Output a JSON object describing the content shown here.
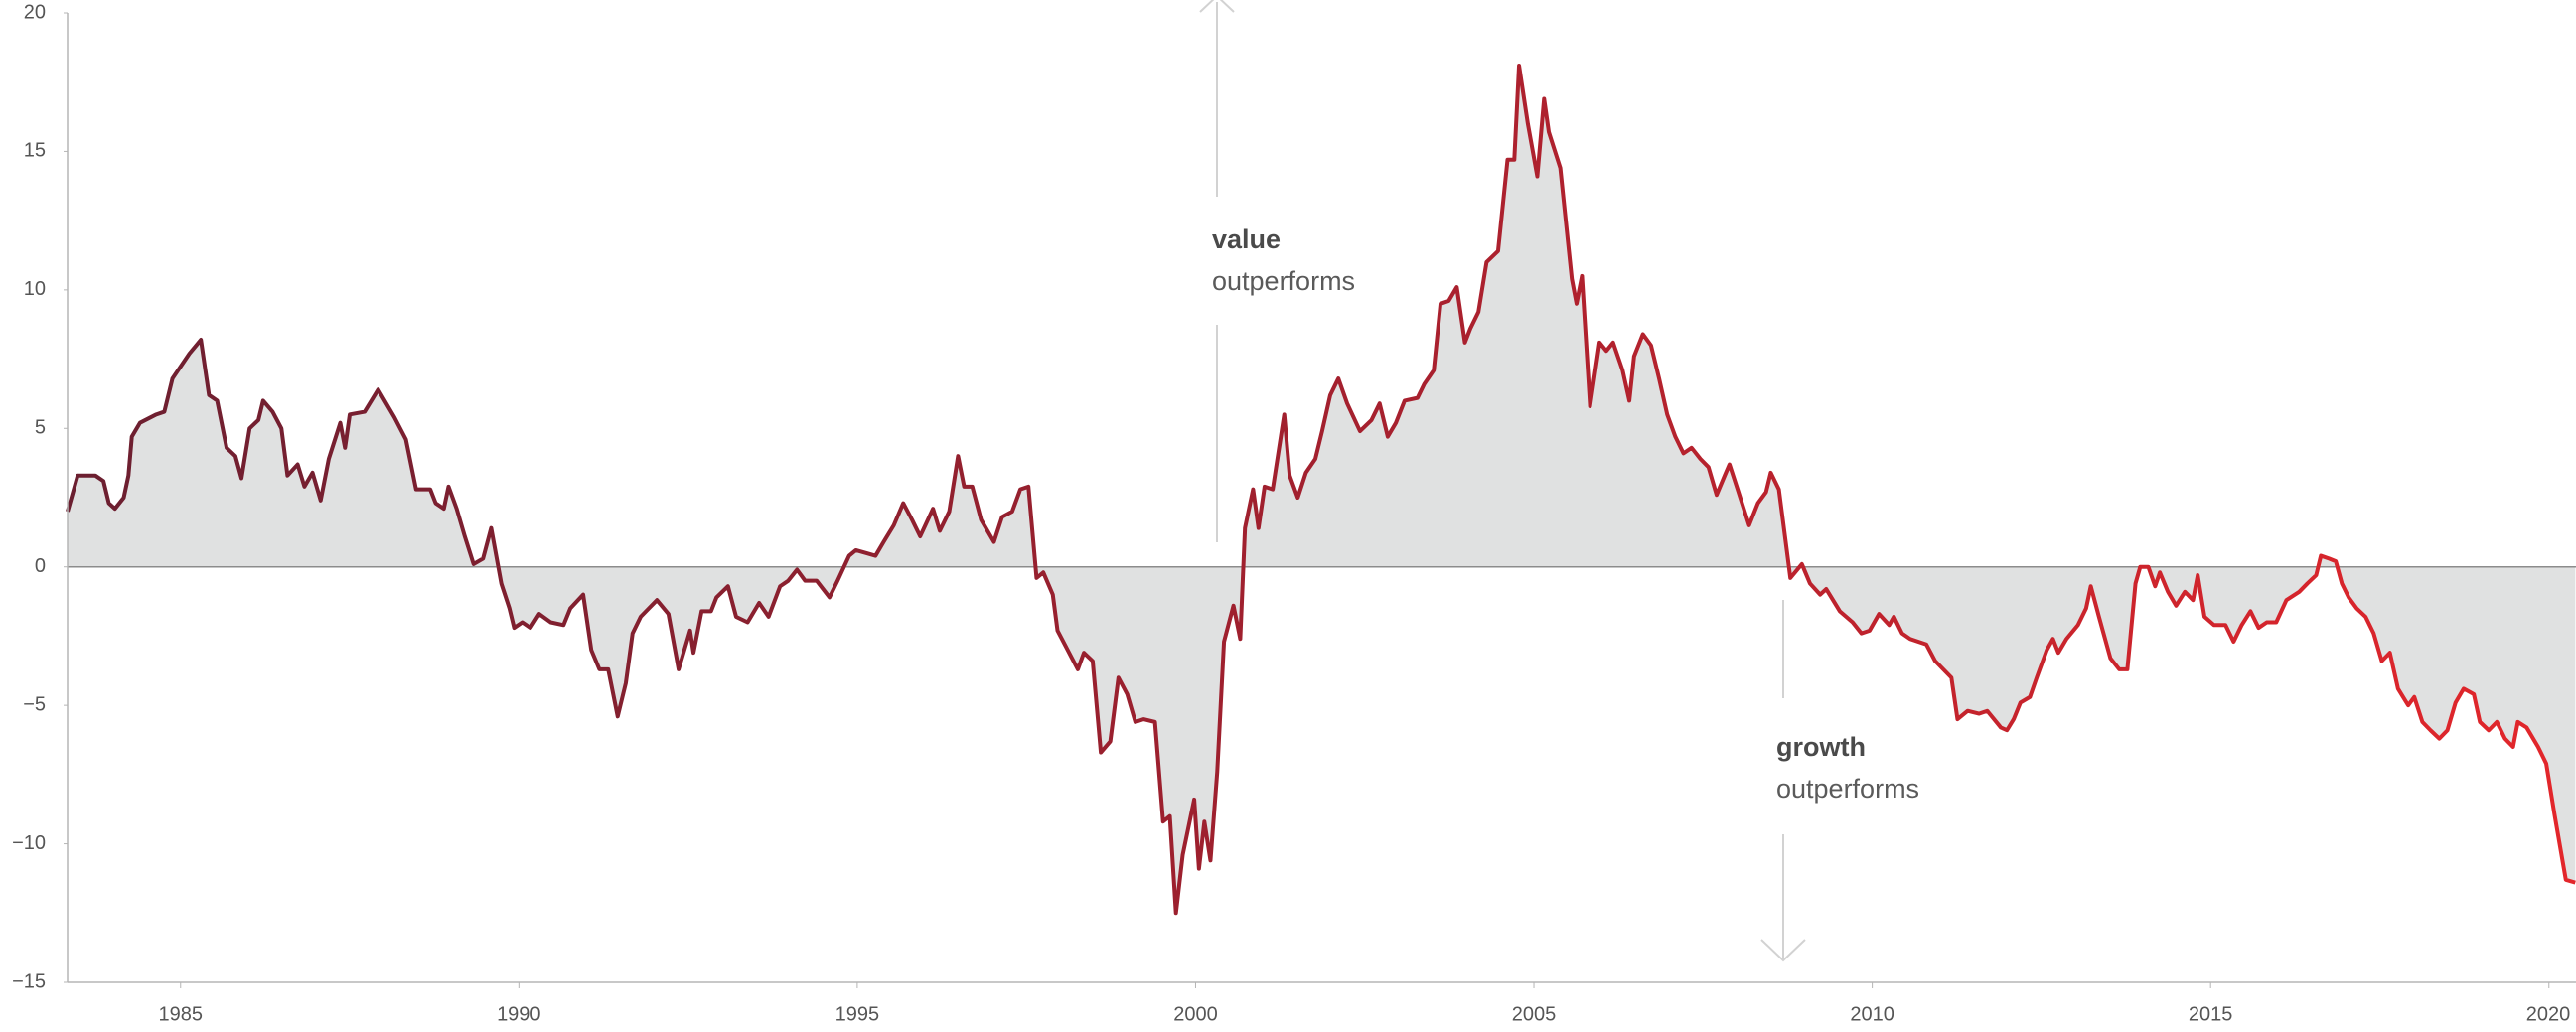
{
  "chart_data": {
    "type": "area-line",
    "annotations": [
      {
        "bold": "value",
        "text": "outperforms"
      },
      {
        "bold": "growth",
        "text": "outperforms"
      }
    ],
    "x": [
      1983.33,
      1983.48,
      1983.74,
      1983.86,
      1983.94,
      1984.03,
      1984.16,
      1984.23,
      1984.28,
      1984.4,
      1984.64,
      1984.76,
      1984.88,
      1985.13,
      1985.3,
      1985.42,
      1985.54,
      1985.68,
      1985.81,
      1985.9,
      1986.02,
      1986.15,
      1986.22,
      1986.36,
      1986.49,
      1986.58,
      1986.73,
      1986.83,
      1986.95,
      1987.07,
      1987.19,
      1987.36,
      1987.43,
      1987.5,
      1987.72,
      1987.92,
      1988.16,
      1988.33,
      1988.48,
      1988.69,
      1988.77,
      1988.89,
      1988.96,
      1989.08,
      1989.2,
      1989.33,
      1989.47,
      1989.59,
      1989.74,
      1989.86,
      1989.93,
      1990.05,
      1990.17,
      1990.3,
      1990.47,
      1990.66,
      1990.76,
      1990.95,
      1991.07,
      1991.19,
      1991.32,
      1991.46,
      1991.58,
      1991.68,
      1991.8,
      1991.92,
      1992.04,
      1992.21,
      1992.36,
      1992.53,
      1992.58,
      1992.7,
      1992.84,
      1992.92,
      1993.09,
      1993.21,
      1993.38,
      1993.55,
      1993.69,
      1993.86,
      1993.98,
      1994.11,
      1994.23,
      1994.4,
      1994.59,
      1994.71,
      1994.88,
      1994.98,
      1995.13,
      1995.27,
      1995.39,
      1995.54,
      1995.68,
      1995.81,
      1995.93,
      1996.12,
      1996.22,
      1996.36,
      1996.49,
      1996.58,
      1996.7,
      1996.83,
      1997.02,
      1997.14,
      1997.29,
      1997.41,
      1997.53,
      1997.65,
      1997.75,
      1997.89,
      1997.96,
      1998.11,
      1998.26,
      1998.35,
      1998.48,
      1998.6,
      1998.74,
      1998.86,
      1998.99,
      1999.11,
      1999.23,
      1999.4,
      1999.52,
      1999.62,
      1999.71,
      1999.81,
      1999.98,
      2000.05,
      2000.13,
      2000.22,
      2000.32,
      2000.42,
      2000.56,
      2000.66,
      2000.73,
      2000.85,
      2000.93,
      2001.02,
      2001.14,
      2001.31,
      2001.39,
      2001.51,
      2001.63,
      2001.77,
      2001.87,
      2001.99,
      2002.11,
      2002.24,
      2002.43,
      2002.6,
      2002.72,
      2002.84,
      2002.96,
      2003.09,
      2003.28,
      2003.38,
      2003.52,
      2003.62,
      2003.74,
      2003.86,
      2003.98,
      2004.06,
      2004.18,
      2004.3,
      2004.47,
      2004.61,
      2004.71,
      2004.78,
      2004.91,
      2005.05,
      2005.15,
      2005.22,
      2005.39,
      2005.56,
      2005.63,
      2005.71,
      2005.83,
      2005.97,
      2006.07,
      2006.17,
      2006.31,
      2006.41,
      2006.48,
      2006.61,
      2006.73,
      2006.85,
      2006.97,
      2007.09,
      2007.21,
      2007.33,
      2007.46,
      2007.58,
      2007.7,
      2007.82,
      2007.89,
      2008.01,
      2008.18,
      2008.31,
      2008.43,
      2008.5,
      2008.62,
      2008.79,
      2008.96,
      2009.08,
      2009.23,
      2009.32,
      2009.52,
      2009.71,
      2009.84,
      2009.96,
      2010.1,
      2010.25,
      2010.32,
      2010.44,
      2010.56,
      2010.68,
      2010.8,
      2010.93,
      2011.17,
      2011.26,
      2011.41,
      2011.58,
      2011.7,
      2011.9,
      2011.99,
      2012.09,
      2012.19,
      2012.33,
      2012.43,
      2012.58,
      2012.67,
      2012.75,
      2012.87,
      2013.04,
      2013.16,
      2013.23,
      2013.35,
      2013.52,
      2013.65,
      2013.77,
      2013.89,
      2013.96,
      2014.08,
      2014.18,
      2014.25,
      2014.37,
      2014.49,
      2014.62,
      2014.74,
      2014.81,
      2014.91,
      2015.05,
      2015.22,
      2015.34,
      2015.46,
      2015.59,
      2015.71,
      2015.83,
      2015.97,
      2016.12,
      2016.31,
      2016.43,
      2016.56,
      2016.63,
      2016.75,
      2016.85,
      2016.94,
      2017.04,
      2017.16,
      2017.29,
      2017.41,
      2017.53,
      2017.65,
      2017.77,
      2017.92,
      2018.01,
      2018.13,
      2018.25,
      2018.38,
      2018.5,
      2018.62,
      2018.74,
      2018.89,
      2018.98,
      2019.11,
      2019.23,
      2019.35,
      2019.47,
      2019.54,
      2019.67,
      2019.84,
      2019.96,
      2020.08,
      2020.25,
      2020.39
    ],
    "values": [
      2.0,
      3.3,
      3.3,
      3.1,
      2.3,
      2.1,
      2.5,
      3.3,
      4.7,
      5.2,
      5.5,
      5.6,
      6.8,
      7.7,
      8.2,
      6.2,
      6.0,
      4.3,
      4.0,
      3.2,
      5.0,
      5.3,
      6.0,
      5.6,
      5.0,
      3.3,
      3.7,
      2.9,
      3.4,
      2.4,
      3.9,
      5.2,
      4.3,
      5.5,
      5.6,
      6.4,
      5.4,
      4.6,
      2.8,
      2.8,
      2.3,
      2.1,
      2.9,
      2.1,
      1.1,
      0.1,
      0.3,
      1.4,
      -0.6,
      -1.5,
      -2.2,
      -2.0,
      -2.2,
      -1.7,
      -2.0,
      -2.1,
      -1.5,
      -1.0,
      -3.0,
      -3.7,
      -3.7,
      -5.4,
      -4.2,
      -2.4,
      -1.8,
      -1.5,
      -1.2,
      -1.7,
      -3.7,
      -2.3,
      -3.1,
      -1.6,
      -1.6,
      -1.1,
      -0.7,
      -1.8,
      -2.0,
      -1.3,
      -1.8,
      -0.7,
      -0.5,
      -0.1,
      -0.5,
      -0.5,
      -1.1,
      -0.5,
      0.4,
      0.6,
      0.5,
      0.4,
      0.9,
      1.5,
      2.3,
      1.7,
      1.1,
      2.1,
      1.3,
      2.0,
      4.0,
      2.9,
      2.9,
      1.7,
      0.9,
      1.8,
      2.0,
      2.8,
      2.9,
      -0.4,
      -0.2,
      -1.0,
      -2.3,
      -3.0,
      -3.7,
      -3.1,
      -3.4,
      -6.7,
      -6.3,
      -4.0,
      -4.6,
      -5.6,
      -5.5,
      -5.6,
      -9.2,
      -9.0,
      -12.5,
      -10.4,
      -8.4,
      -10.9,
      -9.2,
      -10.6,
      -7.4,
      -2.7,
      -1.4,
      -2.6,
      1.4,
      2.8,
      1.4,
      2.9,
      2.8,
      5.5,
      3.3,
      2.5,
      3.4,
      3.9,
      4.9,
      6.2,
      6.8,
      5.9,
      4.9,
      5.3,
      5.9,
      4.7,
      5.2,
      6.0,
      6.1,
      6.6,
      7.1,
      9.5,
      9.6,
      10.1,
      8.1,
      8.6,
      9.2,
      11.0,
      11.4,
      14.7,
      14.7,
      18.1,
      16.0,
      14.1,
      16.9,
      15.7,
      14.4,
      10.4,
      9.5,
      10.5,
      5.8,
      8.1,
      7.8,
      8.1,
      7.1,
      6.0,
      7.6,
      8.4,
      8.0,
      6.8,
      5.5,
      4.7,
      4.1,
      4.3,
      3.9,
      3.6,
      2.6,
      3.3,
      3.7,
      2.8,
      1.5,
      2.3,
      2.7,
      3.4,
      2.8,
      -0.4,
      0.1,
      -0.6,
      -1.0,
      -0.8,
      -1.6,
      -2.0,
      -2.4,
      -2.3,
      -1.7,
      -2.1,
      -1.8,
      -2.4,
      -2.6,
      -2.7,
      -2.8,
      -3.4,
      -4.0,
      -5.5,
      -5.2,
      -5.3,
      -5.2,
      -5.8,
      -5.9,
      -5.5,
      -4.9,
      -4.7,
      -4.0,
      -3.0,
      -2.6,
      -3.1,
      -2.6,
      -2.1,
      -1.5,
      -0.7,
      -1.8,
      -3.3,
      -3.7,
      -3.7,
      -0.6,
      0.0,
      0.0,
      -0.7,
      -0.2,
      -0.9,
      -1.4,
      -0.9,
      -1.2,
      -0.3,
      -1.8,
      -2.1,
      -2.1,
      -2.7,
      -2.1,
      -1.6,
      -2.2,
      -2.0,
      -2.0,
      -1.2,
      -0.9,
      -0.6,
      -0.3,
      0.4,
      0.3,
      0.2,
      -0.6,
      -1.1,
      -1.5,
      -1.8,
      -2.4,
      -3.4,
      -3.1,
      -4.4,
      -5.0,
      -4.7,
      -5.6,
      -5.9,
      -6.2,
      -5.9,
      -4.9,
      -4.4,
      -4.6,
      -5.6,
      -5.9,
      -5.6,
      -6.2,
      -6.5,
      -5.6,
      -5.8,
      -6.5,
      -7.1,
      -8.9,
      -11.3,
      -11.4
    ],
    "line_gradient": [
      "#6b1f30",
      "#a3202e",
      "#e3262b"
    ],
    "area_color": "#e0e1e1",
    "xlim": [
      1983.33,
      2020.4
    ],
    "ylim": [
      -15,
      20
    ],
    "xticks": [
      1985,
      1990,
      1995,
      2000,
      2005,
      2010,
      2015,
      2020
    ],
    "yticks": [
      20,
      15,
      10,
      5,
      0,
      {
        "value": -5,
        "label": "−5"
      },
      {
        "value": -10,
        "label": "−10"
      },
      {
        "value": -15,
        "label": "−15"
      }
    ]
  }
}
